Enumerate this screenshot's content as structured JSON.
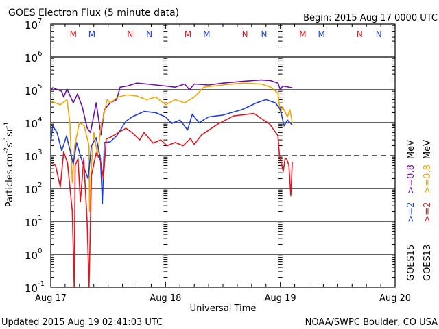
{
  "chart_data": {
    "type": "line",
    "title": "GOES Electron Flux (5 minute data)",
    "begin_label": "Begin: 2015 Aug 17 0000 UTC",
    "xlabel": "Universal Time",
    "ylabel": {
      "base": "Particles cm",
      "exp1": "-2",
      "mid": "s",
      "exp2": "-1",
      "mid2": "sr",
      "exp3": "-1"
    },
    "x_unit": "hours since 2015 Aug 17 00:00 UTC",
    "xlim": [
      0,
      72
    ],
    "x_ticks": [
      {
        "hour": 0,
        "label": "Aug 17"
      },
      {
        "hour": 24,
        "label": "Aug 18"
      },
      {
        "hour": 48,
        "label": "Aug 19"
      },
      {
        "hour": 72,
        "label": "Aug 20"
      }
    ],
    "yscale": "log",
    "ylim": [
      0.1,
      10000000
    ],
    "y_ticks": [
      {
        "base": "10",
        "exp": "7",
        "value": 10000000.0
      },
      {
        "base": "10",
        "exp": "6",
        "value": 1000000.0
      },
      {
        "base": "10",
        "exp": "5",
        "value": 100000.0
      },
      {
        "base": "10",
        "exp": "4",
        "value": 10000.0
      },
      {
        "base": "10",
        "exp": "3",
        "value": 1000.0
      },
      {
        "base": "10",
        "exp": "2",
        "value": 100.0
      },
      {
        "base": "10",
        "exp": "1",
        "value": 10.0
      },
      {
        "base": "10",
        "exp": "0",
        "value": 1
      },
      {
        "base": "10",
        "exp": "-1",
        "value": 0.1
      }
    ],
    "threshold_line": 1000,
    "grid": true,
    "markers": [
      {
        "hour": 4.7,
        "label": "M",
        "color": "#e8141c"
      },
      {
        "hour": 8.6,
        "label": "M",
        "color": "#1c3cd8"
      },
      {
        "hour": 16.6,
        "label": "N",
        "color": "#e8141c"
      },
      {
        "hour": 20.6,
        "label": "N",
        "color": "#1c3cd8"
      },
      {
        "hour": 28.7,
        "label": "M",
        "color": "#e8141c"
      },
      {
        "hour": 32.6,
        "label": "M",
        "color": "#1c3cd8"
      },
      {
        "hour": 40.6,
        "label": "N",
        "color": "#e8141c"
      },
      {
        "hour": 44.6,
        "label": "N",
        "color": "#1c3cd8"
      },
      {
        "hour": 52.7,
        "label": "M",
        "color": "#e8141c"
      },
      {
        "hour": 56.6,
        "label": "M",
        "color": "#1c3cd8"
      },
      {
        "hour": 64.6,
        "label": "N",
        "color": "#e8141c"
      },
      {
        "hour": 68.6,
        "label": "N",
        "color": "#1c3cd8"
      }
    ],
    "legend": {
      "placement": "right (vertical)",
      "rows": [
        {
          "satellite": "GOES15",
          "low": ">=2",
          "high": ">=0.8",
          "unit": "MeV",
          "low_color": "#1c3cd8",
          "high_color": "#6a0fa8"
        },
        {
          "satellite": "GOES13",
          "low": ">=2",
          "high": ">=0.8",
          "unit": "MeV",
          "low_color": "#e8141c",
          "high_color": "#f4a500"
        }
      ]
    },
    "series": [
      {
        "name": "GOES15 >=0.8 MeV",
        "color": "#6a0fa8",
        "points": [
          [
            0,
            95000.0
          ],
          [
            0.4,
            115000.0
          ],
          [
            2.3,
            90000.0
          ],
          [
            2.7,
            60000.0
          ],
          [
            3.4,
            105000.0
          ],
          [
            4.7,
            40000.0
          ],
          [
            5.6,
            75000.0
          ],
          [
            6.6,
            30000.0
          ],
          [
            7.6,
            7000.0
          ],
          [
            8.3,
            5000.0
          ],
          [
            9.5,
            40000.0
          ],
          [
            10.5,
            4300.0
          ],
          [
            11.2,
            25000.0
          ],
          [
            12.4,
            40000.0
          ],
          [
            13.8,
            50000.0
          ],
          [
            14.5,
            120000.0
          ],
          [
            16,
            130000.0
          ],
          [
            18,
            160000.0
          ],
          [
            20,
            150000.0
          ],
          [
            22,
            140000.0
          ],
          [
            24,
            130000.0
          ],
          [
            26,
            120000.0
          ],
          [
            28,
            150000.0
          ],
          [
            29,
            100000.0
          ],
          [
            30,
            150000.0
          ],
          [
            33,
            140000.0
          ],
          [
            36,
            160000.0
          ],
          [
            40,
            180000.0
          ],
          [
            44,
            200000.0
          ],
          [
            46,
            190000.0
          ],
          [
            47.5,
            160000.0
          ],
          [
            48,
            100000.0
          ],
          [
            48.5,
            130000.0
          ],
          [
            50.5,
            115000.0
          ]
        ]
      },
      {
        "name": "GOES13 >=0.8 MeV",
        "color": "#f4a500",
        "points": [
          [
            0,
            45000.0
          ],
          [
            1,
            40000.0
          ],
          [
            2,
            35000.0
          ],
          [
            3.4,
            50000.0
          ],
          [
            4,
            10000.0
          ],
          [
            4.5,
            150.0
          ],
          [
            5,
            2000.0
          ],
          [
            6,
            10000.0
          ],
          [
            7,
            8000.0
          ],
          [
            8,
            2000.0
          ],
          [
            8.1,
            20.0
          ],
          [
            8.5,
            500.0
          ],
          [
            9,
            5000.0
          ],
          [
            9.8,
            1000.0
          ],
          [
            10.5,
            8000.0
          ],
          [
            11,
            15000.0
          ],
          [
            11.8,
            50000.0
          ],
          [
            12.5,
            40000.0
          ],
          [
            14,
            60000.0
          ],
          [
            16,
            70000.0
          ],
          [
            18,
            65000.0
          ],
          [
            20,
            50000.0
          ],
          [
            22,
            60000.0
          ],
          [
            24,
            35000.0
          ],
          [
            26,
            50000.0
          ],
          [
            28,
            40000.0
          ],
          [
            30,
            60000.0
          ],
          [
            32,
            120000.0
          ],
          [
            36,
            140000.0
          ],
          [
            40,
            160000.0
          ],
          [
            44,
            150000.0
          ],
          [
            46,
            120000.0
          ],
          [
            47.5,
            80000.0
          ],
          [
            48,
            20000.0
          ],
          [
            48.5,
            30000.0
          ],
          [
            49.5,
            15000.0
          ],
          [
            50,
            25000.0
          ],
          [
            50.5,
            10000.0
          ]
        ]
      },
      {
        "name": "GOES15 >=2 MeV",
        "color": "#1c3cd8",
        "points": [
          [
            0,
            2600.0
          ],
          [
            0.4,
            8000.0
          ],
          [
            1.3,
            5000.0
          ],
          [
            2.3,
            1400.0
          ],
          [
            3.3,
            4000.0
          ],
          [
            4.7,
            550.0
          ],
          [
            5.4,
            2500.0
          ],
          [
            6.2,
            1000.0
          ],
          [
            7.1,
            370.0
          ],
          [
            7.8,
            200.0
          ],
          [
            8.5,
            2000.0
          ],
          [
            9.5,
            3500.0
          ],
          [
            10.4,
            800.0
          ],
          [
            10.8,
            35
          ],
          [
            11.2,
            2500.0
          ],
          [
            12.4,
            2600.0
          ],
          [
            13.8,
            4000.0
          ],
          [
            15.7,
            11000.0
          ],
          [
            17,
            15000.0
          ],
          [
            19.5,
            22000.0
          ],
          [
            22,
            20000.0
          ],
          [
            24,
            15000.0
          ],
          [
            25.3,
            9500.0
          ],
          [
            27,
            12000.0
          ],
          [
            28.6,
            6000.0
          ],
          [
            29.6,
            18000.0
          ],
          [
            31,
            10000.0
          ],
          [
            33,
            15000.0
          ],
          [
            36,
            17000.0
          ],
          [
            40,
            25000.0
          ],
          [
            43,
            40000.0
          ],
          [
            45,
            50000.0
          ],
          [
            47,
            40000.0
          ],
          [
            48,
            25000.0
          ],
          [
            48.8,
            8000.0
          ],
          [
            49.5,
            12000.0
          ],
          [
            50.5,
            8500.0
          ]
        ]
      },
      {
        "name": "GOES13 >=2 MeV",
        "color": "#e8141c",
        "points": [
          [
            0,
            600.0
          ],
          [
            1,
            500.0
          ],
          [
            2,
            110.0
          ],
          [
            2.7,
            1300.0
          ],
          [
            3.5,
            600.0
          ],
          [
            4.5,
            20
          ],
          [
            4.9,
            0.1
          ],
          [
            5.1,
            500.0
          ],
          [
            5.7,
            800.0
          ],
          [
            6.2,
            40
          ],
          [
            6.9,
            800.0
          ],
          [
            7.6,
            10
          ],
          [
            8,
            0.1
          ],
          [
            8.5,
            250.0
          ],
          [
            9.5,
            1200.0
          ],
          [
            10.4,
            700.0
          ],
          [
            11,
            200.0
          ],
          [
            11.6,
            3200.0
          ],
          [
            12.8,
            3800.0
          ],
          [
            15.7,
            6800.0
          ],
          [
            17,
            5000.0
          ],
          [
            18.6,
            3000.0
          ],
          [
            19.5,
            5000.0
          ],
          [
            21.4,
            2400.0
          ],
          [
            23,
            3000.0
          ],
          [
            24.3,
            2000.0
          ],
          [
            26,
            2500.0
          ],
          [
            27.7,
            2000.0
          ],
          [
            29.2,
            3300.0
          ],
          [
            30,
            2200.0
          ],
          [
            31.5,
            4200.0
          ],
          [
            34.9,
            9000.0
          ],
          [
            38.2,
            16000.0
          ],
          [
            42.5,
            19000.0
          ],
          [
            45.8,
            9000.0
          ],
          [
            47.5,
            4000.0
          ],
          [
            47.8,
            1100.0
          ],
          [
            48.6,
            330.0
          ],
          [
            49,
            800.0
          ],
          [
            49.3,
            800.0
          ],
          [
            49.8,
            500.0
          ],
          [
            50.2,
            60
          ],
          [
            50.5,
            650.0
          ]
        ]
      }
    ]
  },
  "footer": {
    "updated": "Updated 2015 Aug 19 02:41:03 UTC",
    "credit": "NOAA/SWPC Boulder, CO USA"
  }
}
